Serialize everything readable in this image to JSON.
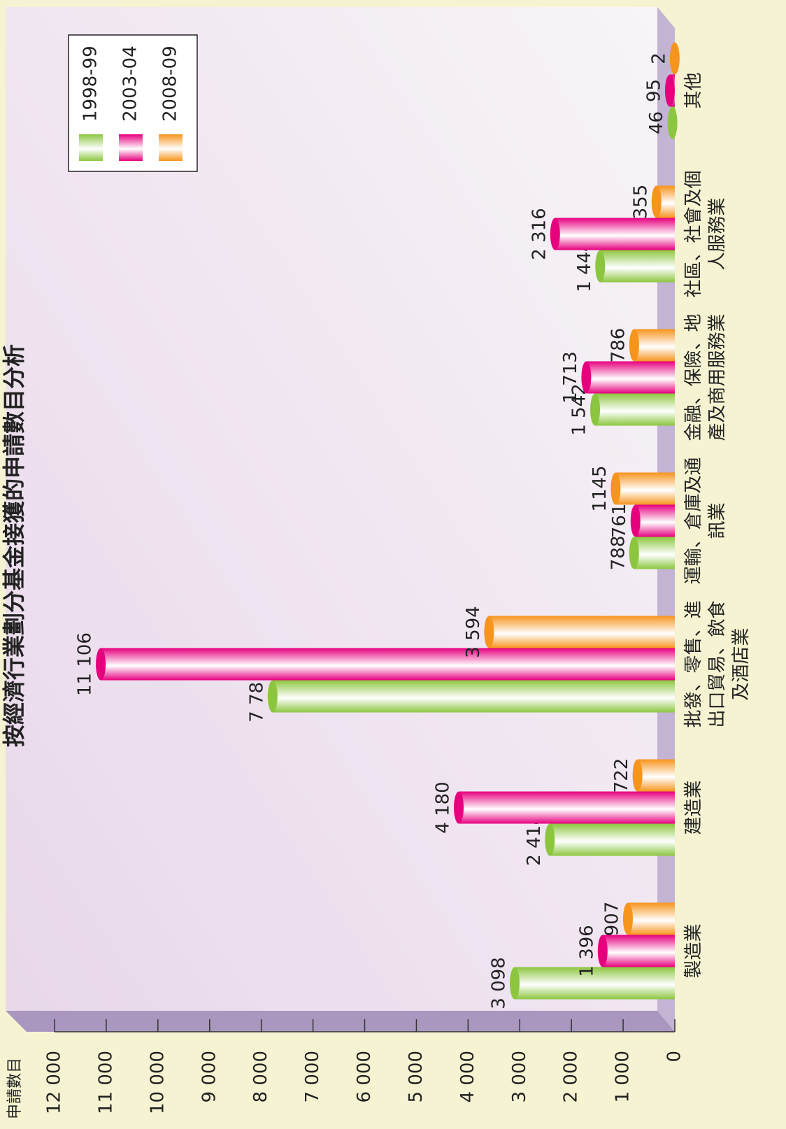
{
  "chart_data": {
    "type": "bar",
    "title": "按經濟行業劃分基金接獲的申請數目分析",
    "y_label": "申請數目",
    "categories": [
      "製造業",
      "建造業",
      "批發、零售、進出口貿易、飲食及酒店業",
      "運輸、倉庫及通訊業",
      "金融、保險、地產及商用服務業",
      "社區、社會及個人服務業",
      "其他"
    ],
    "series": [
      {
        "name": "1998-99",
        "color": "#8cc63f",
        "values": [
          3098,
          2418,
          7781,
          788,
          1542,
          1444,
          46
        ],
        "value_labels": [
          "3 098",
          "2 418",
          "7 781",
          "788",
          "1 542",
          "1 444",
          "46"
        ]
      },
      {
        "name": "2003-04",
        "color": "#e6007e",
        "values": [
          1396,
          4180,
          11106,
          761,
          1713,
          2316,
          95
        ],
        "value_labels": [
          "1 396",
          "4 180",
          "11 106",
          "761",
          "1 713",
          "2 316",
          "95"
        ]
      },
      {
        "name": "2008-09",
        "color": "#f7941d",
        "values": [
          907,
          722,
          3594,
          1145,
          786,
          355,
          2
        ],
        "value_labels": [
          "907",
          "722",
          "3 594",
          "1145",
          "786",
          "355",
          "2"
        ]
      }
    ],
    "ylim": [
      0,
      12000
    ],
    "yticks": [
      0,
      {
        "value": 1000,
        "label": "1 000"
      },
      {
        "value": 2000,
        "label": "2 000"
      },
      {
        "value": 3000,
        "label": "3 000"
      },
      {
        "value": 4000,
        "label": "4 000"
      },
      {
        "value": 5000,
        "label": "5 000"
      },
      {
        "value": 6000,
        "label": "6 000"
      },
      {
        "value": 7000,
        "label": "7 000"
      },
      {
        "value": 8000,
        "label": "8 000"
      },
      {
        "value": 9000,
        "label": "9 000"
      },
      {
        "value": 10000,
        "label": "10 000"
      },
      {
        "value": 11000,
        "label": "11 000"
      },
      {
        "value": 12000,
        "label": "12 000"
      }
    ],
    "legend": "top-right"
  }
}
